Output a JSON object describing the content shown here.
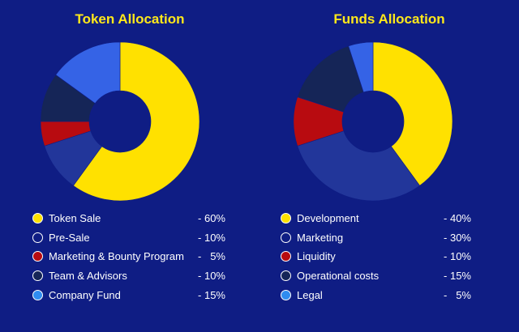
{
  "chart_data": [
    {
      "type": "pie",
      "donut": true,
      "title": "Token Allocation",
      "start_angle_deg": 0,
      "categories": [
        "Token Sale",
        "Pre-Sale",
        "Marketing & Bounty Program",
        "Team & Advisors",
        "Company Fund"
      ],
      "values": [
        60,
        10,
        5,
        10,
        15
      ],
      "value_labels": [
        "- 60%",
        "- 10%",
        "-   5%",
        "- 10%",
        "- 15%"
      ],
      "colors": [
        "#ffe100",
        "#22369a",
        "#b80b10",
        "#152557",
        "#3563e6"
      ],
      "legend_colors": [
        "#ffe100",
        "#0f1d84",
        "#b80b10",
        "#152557",
        "#2f8cf0"
      ],
      "legend": "bottom"
    },
    {
      "type": "pie",
      "donut": true,
      "title": "Funds Allocation",
      "start_angle_deg": 0,
      "categories": [
        "Development",
        "Marketing",
        "Liquidity",
        "Operational costs",
        "Legal"
      ],
      "values": [
        40,
        30,
        10,
        15,
        5
      ],
      "value_labels": [
        "- 40%",
        "- 30%",
        "- 10%",
        "- 15%",
        "-   5%"
      ],
      "colors": [
        "#ffe100",
        "#22369a",
        "#b80b10",
        "#152557",
        "#3563e6"
      ],
      "legend_colors": [
        "#ffe100",
        "#0f1d84",
        "#b80b10",
        "#152557",
        "#2f8cf0"
      ],
      "legend": "bottom"
    }
  ]
}
